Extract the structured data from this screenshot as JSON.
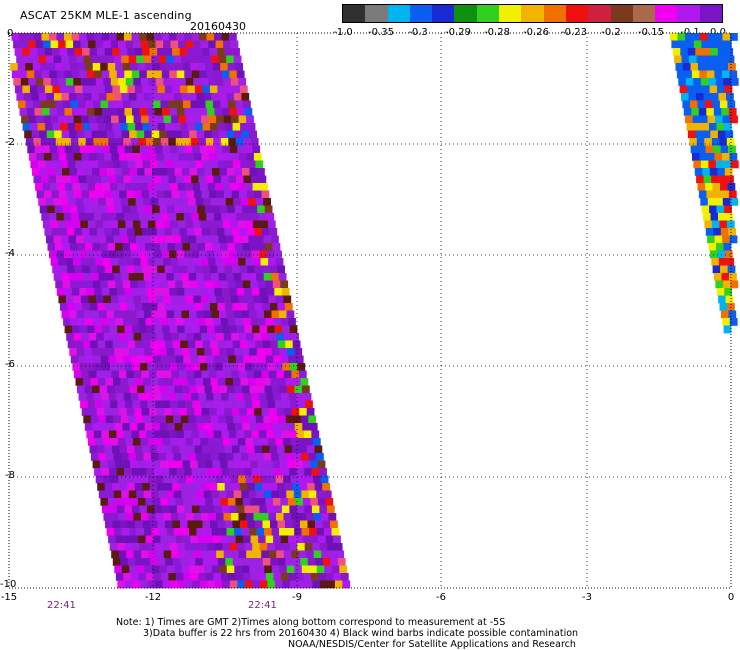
{
  "header": {
    "title": "ASCAT 25KM MLE-1 ascending",
    "date": "20160430"
  },
  "colorbar": {
    "ticks": [
      "-1.0",
      "-0.35",
      "-0.3",
      "-0.29",
      "-0.28",
      "-0.26",
      "-0.23",
      "-0.2",
      "-0.15",
      "-0.1",
      "0.0"
    ],
    "colors": [
      "#303030",
      "#7a7a7a",
      "#00b4f0",
      "#0a5ef0",
      "#1a2ad2",
      "#109010",
      "#30d020",
      "#f0f000",
      "#f0b400",
      "#f07000",
      "#f01010",
      "#d02040",
      "#7a3a1e",
      "#a86a4a",
      "#f000f0",
      "#b018f0",
      "#7a14c4"
    ]
  },
  "map": {
    "x_ticks": [
      "-15",
      "-12",
      "-9",
      "-6",
      "-3",
      "0"
    ],
    "y_ticks": [
      "0",
      "-2",
      "-4",
      "-6",
      "-8",
      "-10"
    ],
    "time_labels": [
      "22:41",
      "22:41"
    ]
  },
  "footer": {
    "line1": "Note: 1) Times are GMT 2)Times along bottom correspond to measurement at -5S",
    "line2": "3)Data buffer is 22 hrs from 20160430 4) Black wind barbs indicate possible contamination",
    "line3": "NOAA/NESDIS/Center for Satellite Applications and Research"
  }
}
